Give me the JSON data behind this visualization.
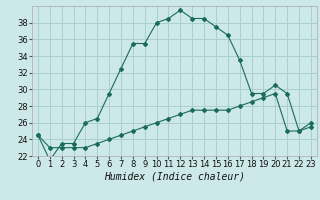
{
  "xlabel": "Humidex (Indice chaleur)",
  "background_color": "#cce8e8",
  "grid_color": "#aacfcf",
  "line_color": "#1a6b5a",
  "x_values": [
    0,
    1,
    2,
    3,
    4,
    5,
    6,
    7,
    8,
    9,
    10,
    11,
    12,
    13,
    14,
    15,
    16,
    17,
    18,
    19,
    20,
    21,
    22,
    23
  ],
  "humidex": [
    24.5,
    21.5,
    23.5,
    23.5,
    26.0,
    26.5,
    29.5,
    32.5,
    35.5,
    35.5,
    38.0,
    38.5,
    39.5,
    38.5,
    38.5,
    37.5,
    36.5,
    33.5,
    29.5,
    29.5,
    30.5,
    29.5,
    25.0,
    25.5
  ],
  "temp": [
    24.5,
    23.0,
    23.0,
    23.0,
    23.0,
    23.5,
    24.0,
    24.5,
    25.0,
    25.5,
    26.0,
    26.5,
    27.0,
    27.5,
    27.5,
    27.5,
    27.5,
    28.0,
    28.5,
    29.0,
    29.5,
    25.0,
    25.0,
    26.0
  ],
  "ylim": [
    22,
    40
  ],
  "yticks": [
    22,
    24,
    26,
    28,
    30,
    32,
    34,
    36,
    38
  ],
  "xlim": [
    -0.5,
    23.5
  ],
  "xlabel_fontsize": 7,
  "tick_fontsize": 6
}
